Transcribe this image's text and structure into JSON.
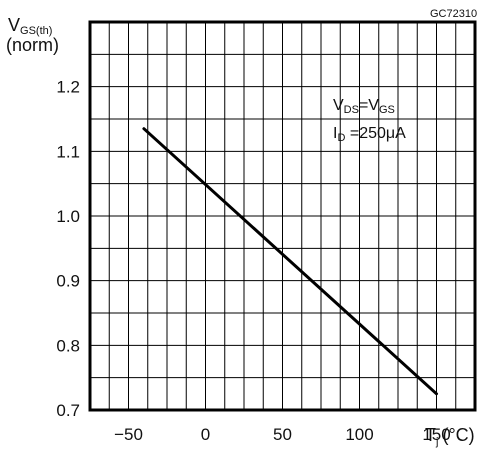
{
  "figure_code": "GC72310",
  "chart_data": {
    "type": "line",
    "ylabel": {
      "symbol": "V",
      "subscript": "GS(th)",
      "line2": "(norm)"
    },
    "xlabel": {
      "symbol": "T",
      "subscript": "j",
      "unit": "(°C)"
    },
    "xlim": [
      -75,
      175
    ],
    "ylim": [
      0.7,
      1.3
    ],
    "x_grid_step": 12.5,
    "y_grid_step": 0.05,
    "grid": true,
    "x_ticks": [
      {
        "value": -50,
        "label": "−50"
      },
      {
        "value": 0,
        "label": "0"
      },
      {
        "value": 50,
        "label": "50"
      },
      {
        "value": 100,
        "label": "100"
      },
      {
        "value": 150,
        "label": "150"
      }
    ],
    "y_ticks": [
      {
        "value": 0.7,
        "label": "0.7"
      },
      {
        "value": 0.8,
        "label": "0.8"
      },
      {
        "value": 0.9,
        "label": "0.9"
      },
      {
        "value": 1.0,
        "label": "1.0"
      },
      {
        "value": 1.1,
        "label": "1.1"
      },
      {
        "value": 1.2,
        "label": "1.2"
      }
    ],
    "series": [
      {
        "x": [
          -40,
          150
        ],
        "y": [
          1.135,
          0.725
        ],
        "color": "#000000"
      }
    ],
    "annotations": [
      {
        "parts": [
          "V",
          "DS",
          "=V",
          "GS"
        ]
      },
      {
        "parts": [
          "I",
          "D",
          " =250μA"
        ]
      }
    ]
  }
}
